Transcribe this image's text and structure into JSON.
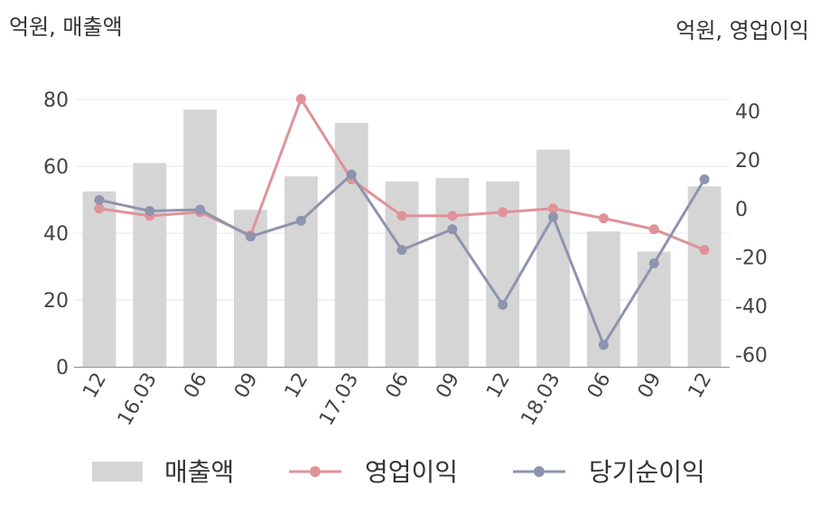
{
  "chart_data": {
    "type": "bar",
    "left_unit_label": "억원, 매출액",
    "right_unit_label": "억원, 영업이익",
    "categories": [
      "12",
      "16.03",
      "06",
      "09",
      "12",
      "17.03",
      "06",
      "09",
      "12",
      "18.03",
      "06",
      "09",
      "12"
    ],
    "left_axis": {
      "ylim": [
        0,
        86
      ],
      "ticks": [
        0,
        20,
        40,
        60,
        80
      ]
    },
    "right_axis": {
      "ylim": [
        -65,
        53
      ],
      "ticks": [
        -60,
        -40,
        -20,
        0,
        20,
        40
      ]
    },
    "grid": true,
    "legend_position": "bottom",
    "series": [
      {
        "name": "매출액",
        "kind": "bar",
        "axis": "left",
        "color": "#d5d5d5",
        "values": [
          52.5,
          61,
          77,
          47,
          57,
          73,
          55.5,
          56.5,
          55.5,
          65,
          40.5,
          34.5,
          54
        ]
      },
      {
        "name": "영업이익",
        "kind": "line",
        "axis": "right",
        "color": "#e09299",
        "values": [
          0,
          -3,
          -1.5,
          -11,
          45,
          12,
          -3,
          -3,
          -1.5,
          0,
          -4,
          -8.5,
          -17
        ]
      },
      {
        "name": "당기순이익",
        "kind": "line",
        "axis": "right",
        "color": "#8e94ad",
        "values": [
          3.5,
          -1,
          -0.5,
          -11.5,
          -5,
          14,
          -17,
          -8.5,
          -39.5,
          -3.5,
          -56,
          -22.5,
          12
        ]
      }
    ]
  }
}
